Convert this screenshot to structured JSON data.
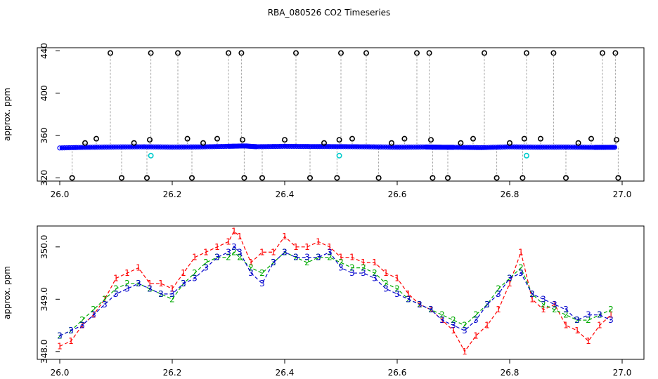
{
  "chart_data": [
    {
      "type": "scatter",
      "title": "RBA_080526  CO2 Timeseries",
      "xlabel": "",
      "ylabel": "approx. ppm",
      "xlim": [
        26.0,
        27.0
      ],
      "ylim": [
        317,
        443
      ],
      "xticks": [
        "26.0",
        "26.2",
        "26.4",
        "26.6",
        "26.8",
        "27.0"
      ],
      "xtick_values": [
        26.0,
        26.2,
        26.4,
        26.6,
        26.8,
        27.0
      ],
      "yticks": [
        "320",
        "360",
        "400",
        "440"
      ],
      "ytick_values": [
        320,
        360,
        400,
        440
      ],
      "grid": false,
      "baseline_series": {
        "color": "#0000ff",
        "x": [
          26.0,
          26.05,
          26.1,
          26.15,
          26.2,
          26.25,
          26.3,
          26.33,
          26.35,
          26.4,
          26.45,
          26.5,
          26.55,
          26.6,
          26.65,
          26.67,
          26.7,
          26.75,
          26.8,
          26.85,
          26.9,
          26.95,
          26.99
        ],
        "y": [
          348.3,
          348.9,
          349.2,
          349.4,
          349.1,
          349.3,
          349.9,
          350.2,
          349.5,
          349.9,
          349.7,
          349.6,
          349.4,
          349.0,
          349.2,
          349.0,
          348.9,
          348.6,
          349.3,
          349.0,
          349.1,
          348.8,
          348.9
        ]
      },
      "spikes": [
        {
          "x": 26.022,
          "y": 320
        },
        {
          "x": 26.045,
          "y": 353
        },
        {
          "x": 26.065,
          "y": 357
        },
        {
          "x": 26.09,
          "y": 438
        },
        {
          "x": 26.11,
          "y": 320
        },
        {
          "x": 26.132,
          "y": 353
        },
        {
          "x": 26.155,
          "y": 320
        },
        {
          "x": 26.16,
          "y": 356
        },
        {
          "x": 26.162,
          "y": 438
        },
        {
          "x": 26.21,
          "y": 438
        },
        {
          "x": 26.227,
          "y": 357
        },
        {
          "x": 26.235,
          "y": 320
        },
        {
          "x": 26.255,
          "y": 353
        },
        {
          "x": 26.28,
          "y": 357
        },
        {
          "x": 26.3,
          "y": 438
        },
        {
          "x": 26.323,
          "y": 438
        },
        {
          "x": 26.325,
          "y": 356
        },
        {
          "x": 26.328,
          "y": 320
        },
        {
          "x": 26.36,
          "y": 320
        },
        {
          "x": 26.4,
          "y": 356
        },
        {
          "x": 26.42,
          "y": 438
        },
        {
          "x": 26.445,
          "y": 320
        },
        {
          "x": 26.47,
          "y": 353
        },
        {
          "x": 26.493,
          "y": 320
        },
        {
          "x": 26.497,
          "y": 356
        },
        {
          "x": 26.5,
          "y": 438
        },
        {
          "x": 26.52,
          "y": 357
        },
        {
          "x": 26.545,
          "y": 438
        },
        {
          "x": 26.567,
          "y": 320
        },
        {
          "x": 26.59,
          "y": 353
        },
        {
          "x": 26.613,
          "y": 357
        },
        {
          "x": 26.635,
          "y": 438
        },
        {
          "x": 26.657,
          "y": 438
        },
        {
          "x": 26.66,
          "y": 356
        },
        {
          "x": 26.663,
          "y": 320
        },
        {
          "x": 26.69,
          "y": 320
        },
        {
          "x": 26.713,
          "y": 353
        },
        {
          "x": 26.735,
          "y": 357
        },
        {
          "x": 26.755,
          "y": 438
        },
        {
          "x": 26.777,
          "y": 320
        },
        {
          "x": 26.8,
          "y": 353
        },
        {
          "x": 26.823,
          "y": 320
        },
        {
          "x": 26.826,
          "y": 357
        },
        {
          "x": 26.83,
          "y": 438
        },
        {
          "x": 26.855,
          "y": 357
        },
        {
          "x": 26.878,
          "y": 438
        },
        {
          "x": 26.9,
          "y": 320
        },
        {
          "x": 26.922,
          "y": 353
        },
        {
          "x": 26.945,
          "y": 357
        },
        {
          "x": 26.965,
          "y": 438
        },
        {
          "x": 26.988,
          "y": 438
        },
        {
          "x": 26.99,
          "y": 356
        },
        {
          "x": 26.993,
          "y": 320
        }
      ],
      "cyan_points": [
        {
          "x": 26.162,
          "y": 341
        },
        {
          "x": 26.497,
          "y": 341
        },
        {
          "x": 26.83,
          "y": 341
        }
      ],
      "colors": {
        "spike": "#000000",
        "baseline": "#0000ff",
        "cyan": "#00cccc",
        "drop": "#999999"
      }
    },
    {
      "type": "line",
      "title": "",
      "xlabel": "",
      "ylabel": "approx. ppm",
      "xlim": [
        26.0,
        27.0
      ],
      "ylim": [
        347.85,
        350.4
      ],
      "xticks": [
        "26.0",
        "26.2",
        "26.4",
        "26.6",
        "26.8",
        "27.0"
      ],
      "xtick_values": [
        26.0,
        26.2,
        26.4,
        26.6,
        26.8,
        27.0
      ],
      "yticks": [
        "348.0",
        "349.0",
        "350.0"
      ],
      "ytick_values": [
        348.0,
        349.0,
        350.0
      ],
      "grid": false,
      "series": [
        {
          "marker": "1",
          "color": "#ff0000",
          "x": [
            26.0,
            26.02,
            26.04,
            26.06,
            26.08,
            26.1,
            26.12,
            26.14,
            26.16,
            26.18,
            26.2,
            26.22,
            26.24,
            26.26,
            26.28,
            26.3,
            26.31,
            26.32,
            26.34,
            26.36,
            26.38,
            26.4,
            26.42,
            26.44,
            26.46,
            26.48,
            26.5,
            26.52,
            26.54,
            26.56,
            26.58,
            26.6,
            26.62,
            26.64,
            26.66,
            26.68,
            26.7,
            26.72,
            26.74,
            26.76,
            26.78,
            26.8,
            26.82,
            26.84,
            26.86,
            26.88,
            26.9,
            26.92,
            26.94,
            26.96,
            26.98
          ],
          "y": [
            348.1,
            348.2,
            348.5,
            348.7,
            349.0,
            349.4,
            349.5,
            349.6,
            349.3,
            349.3,
            349.2,
            349.5,
            349.8,
            349.9,
            350.0,
            350.1,
            350.3,
            350.2,
            349.7,
            349.9,
            349.9,
            350.2,
            350.0,
            350.0,
            350.1,
            350.0,
            349.8,
            349.8,
            349.7,
            349.7,
            349.5,
            349.4,
            349.1,
            348.9,
            348.8,
            348.6,
            348.4,
            348.0,
            348.3,
            348.5,
            348.8,
            349.3,
            349.9,
            349.0,
            348.8,
            348.9,
            348.5,
            348.4,
            348.2,
            348.5,
            348.7
          ]
        },
        {
          "marker": "2",
          "color": "#00aa00",
          "x": [
            26.0,
            26.02,
            26.04,
            26.06,
            26.08,
            26.1,
            26.12,
            26.14,
            26.16,
            26.18,
            26.2,
            26.22,
            26.24,
            26.26,
            26.28,
            26.3,
            26.31,
            26.32,
            26.34,
            26.36,
            26.38,
            26.4,
            26.42,
            26.44,
            26.46,
            26.48,
            26.5,
            26.52,
            26.54,
            26.56,
            26.58,
            26.6,
            26.62,
            26.64,
            26.66,
            26.68,
            26.7,
            26.72,
            26.74,
            26.76,
            26.78,
            26.8,
            26.82,
            26.84,
            26.86,
            26.88,
            26.9,
            26.92,
            26.94,
            26.96,
            26.98
          ],
          "y": [
            348.3,
            348.4,
            348.6,
            348.8,
            349.0,
            349.2,
            349.3,
            349.3,
            349.2,
            349.1,
            349.0,
            349.3,
            349.5,
            349.7,
            349.8,
            349.8,
            349.9,
            349.8,
            349.6,
            349.5,
            349.7,
            349.9,
            349.8,
            349.7,
            349.8,
            349.8,
            349.7,
            349.6,
            349.6,
            349.5,
            349.3,
            349.2,
            349.0,
            348.9,
            348.8,
            348.7,
            348.6,
            348.5,
            348.7,
            348.9,
            349.2,
            349.4,
            349.6,
            349.1,
            348.9,
            348.8,
            348.7,
            348.6,
            348.6,
            348.7,
            348.8
          ]
        },
        {
          "marker": "3",
          "color": "#0000cc",
          "x": [
            26.0,
            26.02,
            26.04,
            26.06,
            26.08,
            26.1,
            26.12,
            26.14,
            26.16,
            26.18,
            26.2,
            26.22,
            26.24,
            26.26,
            26.28,
            26.3,
            26.31,
            26.32,
            26.34,
            26.36,
            26.38,
            26.4,
            26.42,
            26.44,
            26.46,
            26.48,
            26.5,
            26.52,
            26.54,
            26.56,
            26.58,
            26.6,
            26.62,
            26.64,
            26.66,
            26.68,
            26.7,
            26.72,
            26.74,
            26.76,
            26.78,
            26.8,
            26.82,
            26.84,
            26.86,
            26.88,
            26.9,
            26.92,
            26.94,
            26.96,
            26.98
          ],
          "y": [
            348.3,
            348.4,
            348.5,
            348.7,
            348.9,
            349.1,
            349.2,
            349.3,
            349.2,
            349.1,
            349.1,
            349.3,
            349.4,
            349.6,
            349.8,
            349.9,
            350.0,
            349.9,
            349.5,
            349.3,
            349.7,
            349.9,
            349.8,
            349.8,
            349.8,
            349.9,
            349.6,
            349.5,
            349.5,
            349.4,
            349.2,
            349.1,
            349.0,
            348.9,
            348.8,
            348.6,
            348.5,
            348.4,
            348.6,
            348.9,
            349.1,
            349.4,
            349.5,
            349.1,
            349.0,
            348.9,
            348.8,
            348.6,
            348.7,
            348.7,
            348.6
          ]
        }
      ]
    }
  ]
}
